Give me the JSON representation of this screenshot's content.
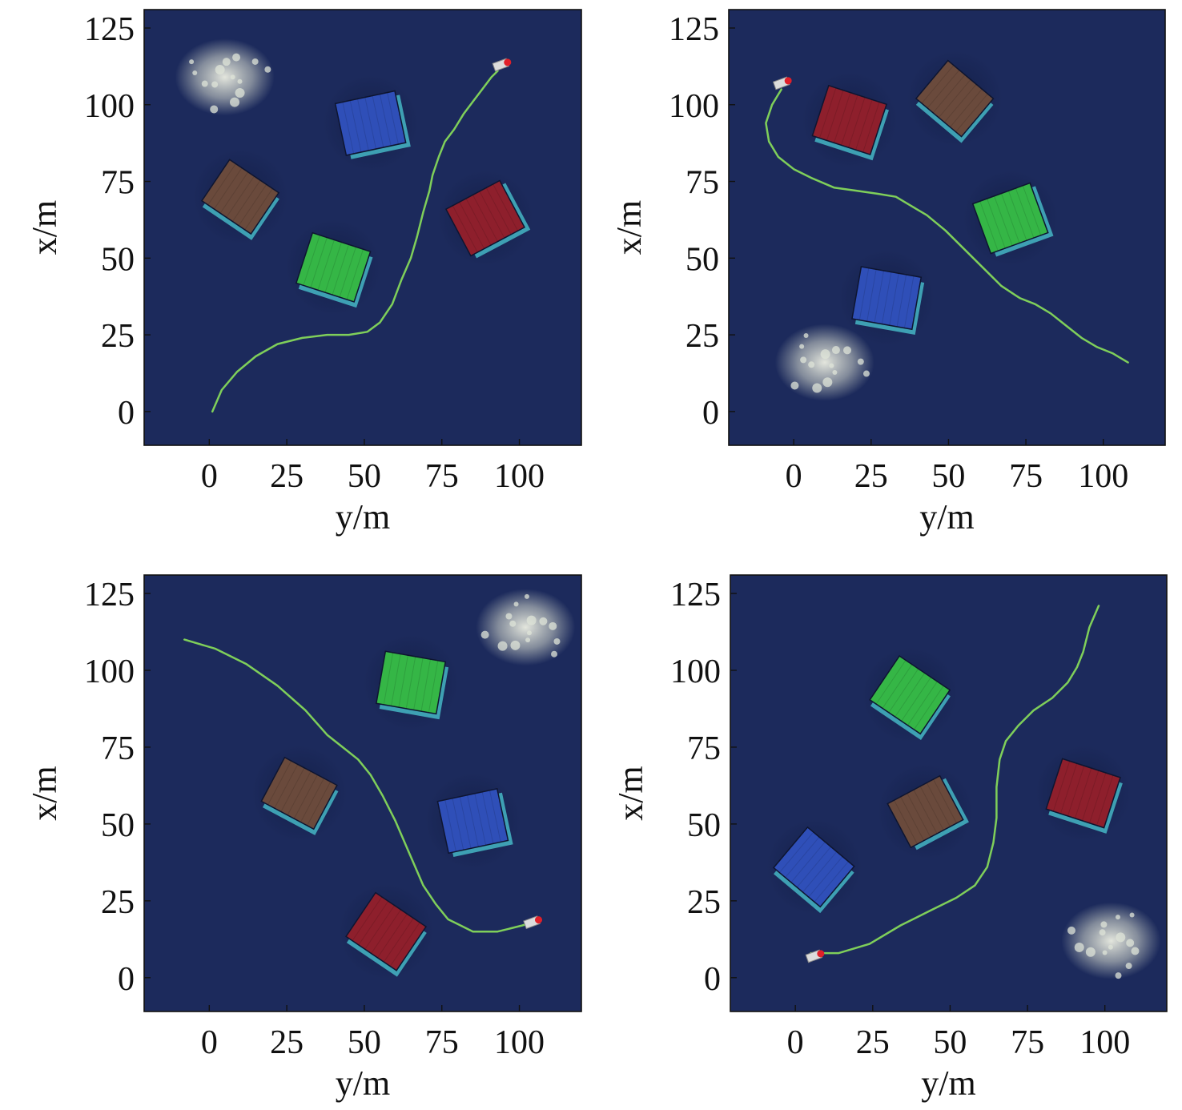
{
  "colors": {
    "sea": "#1c2a5c",
    "path": "#7fcf5a",
    "blue_box": "#2f4fb8",
    "red_box": "#8e1f2c",
    "green_box": "#35b646",
    "brown_box": "#6a4a3c",
    "cyan_edge": "#4fd4dc",
    "foam": "#dfe4d8",
    "vessel": "#dcdcdc",
    "vessel_mark": "#e0202a"
  },
  "chart_data": [
    {
      "type": "line",
      "panel": "top-left",
      "xlabel": "y/m",
      "ylabel": "x/m",
      "xticks": [
        0,
        25,
        50,
        75,
        100
      ],
      "yticks": [
        0,
        25,
        50,
        75,
        100,
        125
      ],
      "xlim": [
        -21,
        120
      ],
      "ylim": [
        -11,
        131
      ],
      "series": [
        {
          "x": [
            1,
            4,
            9,
            15,
            22,
            30,
            38,
            45,
            51,
            55,
            59,
            62,
            65,
            67,
            69,
            71,
            72,
            74,
            76,
            79,
            82,
            85,
            88,
            91,
            93
          ],
          "y": [
            0,
            7,
            13,
            18,
            22,
            24,
            25,
            25,
            26,
            29,
            35,
            43,
            50,
            57,
            65,
            72,
            77,
            83,
            88,
            92,
            97,
            101,
            105,
            109,
            111
          ]
        }
      ],
      "annotations": [
        {
          "object": "vessel",
          "y": 94,
          "x": 113
        },
        {
          "object": "blue container",
          "y": 52,
          "x": 94
        },
        {
          "object": "brown container",
          "y": 10,
          "x": 70
        },
        {
          "object": "red container",
          "y": 89,
          "x": 63
        },
        {
          "object": "green container",
          "y": 40,
          "x": 47
        },
        {
          "object": "foam",
          "y": 5,
          "x": 109
        }
      ]
    },
    {
      "type": "line",
      "panel": "top-right",
      "xlabel": "y/m",
      "ylabel": "x/m",
      "xticks": [
        0,
        25,
        50,
        75,
        100
      ],
      "yticks": [
        0,
        25,
        50,
        75,
        100,
        125
      ],
      "xlim": [
        -21,
        120
      ],
      "ylim": [
        -11,
        131
      ],
      "series": [
        {
          "x": [
            -4,
            -7,
            -9,
            -8,
            -5,
            0,
            6,
            13,
            20,
            27,
            33,
            38,
            43,
            49,
            55,
            61,
            67,
            73,
            78,
            83,
            88,
            93,
            98,
            103,
            108
          ],
          "y": [
            105,
            100,
            94,
            88,
            83,
            79,
            76,
            73,
            72,
            71,
            70,
            67,
            64,
            59,
            53,
            47,
            41,
            37,
            35,
            32,
            28,
            24,
            21,
            19,
            16
          ]
        }
      ],
      "annotations": [
        {
          "object": "vessel",
          "y": -4,
          "x": 107
        },
        {
          "object": "red container",
          "y": 18,
          "x": 95
        },
        {
          "object": "brown container",
          "y": 52,
          "x": 102
        },
        {
          "object": "green container",
          "y": 70,
          "x": 63
        },
        {
          "object": "blue container",
          "y": 30,
          "x": 37
        },
        {
          "object": "foam",
          "y": 10,
          "x": 16
        }
      ]
    },
    {
      "type": "line",
      "panel": "bottom-left",
      "xlabel": "y/m",
      "ylabel": "x/m",
      "xticks": [
        0,
        25,
        50,
        75,
        100
      ],
      "yticks": [
        0,
        25,
        50,
        75,
        100,
        125
      ],
      "xlim": [
        -21,
        120
      ],
      "ylim": [
        -11,
        131
      ],
      "series": [
        {
          "x": [
            -8,
            2,
            12,
            22,
            31,
            38,
            43,
            48,
            52,
            56,
            60,
            63,
            66,
            69,
            73,
            77,
            81,
            85,
            89,
            93,
            97,
            101,
            104
          ],
          "y": [
            110,
            107,
            102,
            95,
            87,
            79,
            75,
            71,
            66,
            59,
            51,
            44,
            37,
            30,
            24,
            19,
            17,
            15,
            15,
            15,
            16,
            17,
            18
          ]
        }
      ],
      "annotations": [
        {
          "object": "vessel",
          "y": 104,
          "x": 18
        },
        {
          "object": "green container",
          "y": 65,
          "x": 96
        },
        {
          "object": "brown container",
          "y": 29,
          "x": 60
        },
        {
          "object": "blue container",
          "y": 85,
          "x": 51
        },
        {
          "object": "red container",
          "y": 57,
          "x": 15
        },
        {
          "object": "foam",
          "y": 102,
          "x": 114
        }
      ]
    },
    {
      "type": "line",
      "panel": "bottom-right",
      "xlabel": "y/m",
      "ylabel": "x/m",
      "xticks": [
        0,
        25,
        50,
        75,
        100
      ],
      "yticks": [
        0,
        25,
        50,
        75,
        100,
        125
      ],
      "xlim": [
        -21,
        120
      ],
      "ylim": [
        -11,
        131
      ],
      "series": [
        {
          "x": [
            5,
            14,
            24,
            34,
            44,
            52,
            58,
            62,
            64,
            65,
            65,
            66,
            68,
            72,
            77,
            83,
            88,
            91,
            93,
            95,
            98
          ],
          "y": [
            8,
            8,
            11,
            17,
            22,
            26,
            30,
            36,
            44,
            52,
            62,
            71,
            77,
            82,
            87,
            91,
            96,
            101,
            106,
            114,
            121
          ]
        }
      ],
      "annotations": [
        {
          "object": "vessel",
          "y": 6,
          "x": 7
        },
        {
          "object": "green container",
          "y": 37,
          "x": 92
        },
        {
          "object": "brown container",
          "y": 42,
          "x": 54
        },
        {
          "object": "red container",
          "y": 93,
          "x": 60
        },
        {
          "object": "blue container",
          "y": 6,
          "x": 36
        },
        {
          "object": "foam",
          "y": 102,
          "x": 12
        }
      ]
    }
  ]
}
